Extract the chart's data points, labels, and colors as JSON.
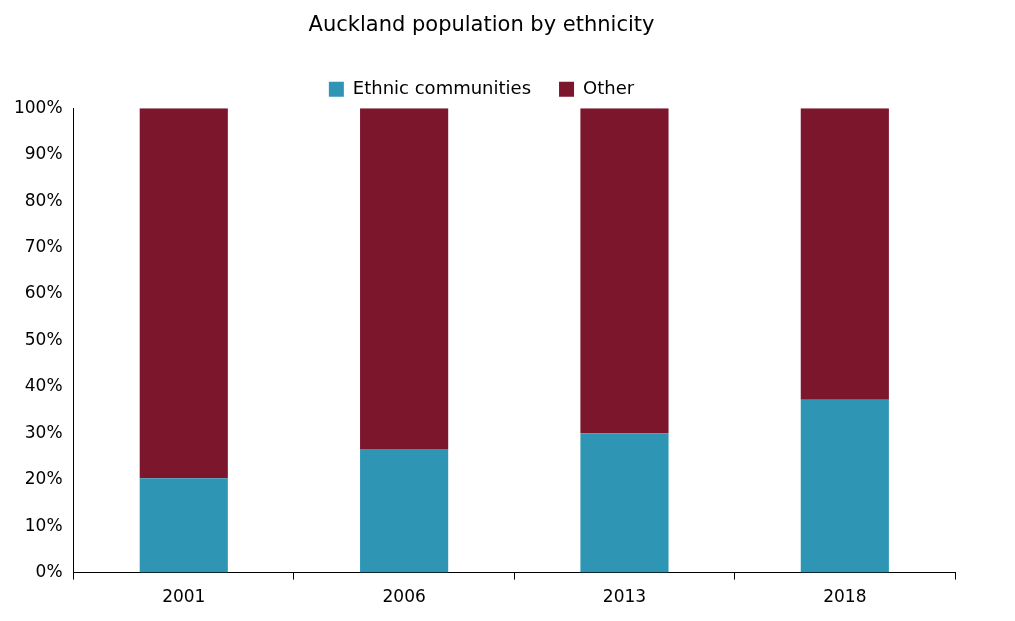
{
  "chart_data": {
    "type": "bar",
    "title": "Auckland population by ethnicity",
    "categories": [
      "2001",
      "2006",
      "2013",
      "2018"
    ],
    "series": [
      {
        "name": "Ethnic communities",
        "color": "#2e96b4",
        "values": [
          20.3,
          26.6,
          30.0,
          37.2
        ]
      },
      {
        "name": "Other",
        "color": "#7b162d",
        "values": [
          79.7,
          73.4,
          70.0,
          62.8
        ]
      }
    ],
    "stacked": true,
    "ylim": [
      0,
      100
    ],
    "yticks": [
      {
        "value": 0,
        "label": "0%"
      },
      {
        "value": 10,
        "label": "10%"
      },
      {
        "value": 20,
        "label": "20%"
      },
      {
        "value": 30,
        "label": "30%"
      },
      {
        "value": 40,
        "label": "40%"
      },
      {
        "value": 50,
        "label": "50%"
      },
      {
        "value": 60,
        "label": "60%"
      },
      {
        "value": 70,
        "label": "70%"
      },
      {
        "value": 80,
        "label": "80%"
      },
      {
        "value": 90,
        "label": "90%"
      },
      {
        "value": 100,
        "label": "100%"
      }
    ],
    "grid": false,
    "legend": "top"
  }
}
